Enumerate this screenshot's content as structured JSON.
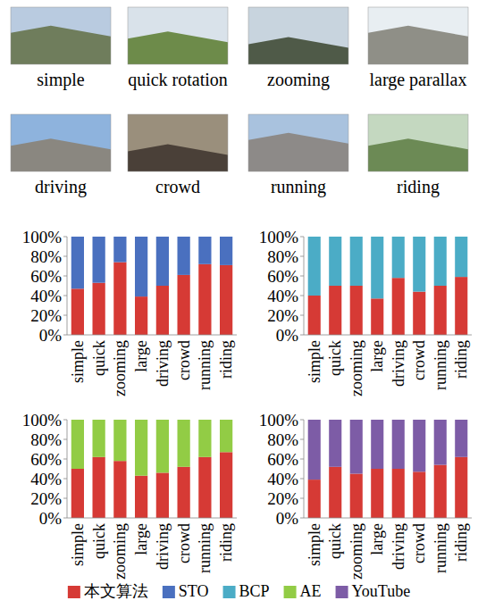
{
  "scenes": [
    "simple",
    "quick rotation",
    "zooming",
    "large parallax",
    "driving",
    "crowd",
    "running",
    "riding"
  ],
  "chart_data": [
    {
      "type": "bar",
      "stacked": true,
      "legend": "bottom",
      "grid": false,
      "categories": [
        "simple",
        "quick",
        "zooming",
        "large",
        "driving",
        "crowd",
        "running",
        "riding"
      ],
      "ylim": [
        0,
        100
      ],
      "yticks": [
        {
          "value": 0,
          "label": "0%"
        },
        {
          "value": 20,
          "label": "20%"
        },
        {
          "value": 40,
          "label": "40%"
        },
        {
          "value": 60,
          "label": "60%"
        },
        {
          "value": 80,
          "label": "80%"
        },
        {
          "value": 100,
          "label": "100%"
        }
      ],
      "series": [
        {
          "name": "本文算法",
          "color": "#d63a35",
          "values": [
            47,
            53,
            74,
            39,
            50,
            61,
            72,
            71
          ]
        },
        {
          "name": "STO",
          "color": "#4a70bf",
          "values": [
            53,
            47,
            26,
            61,
            50,
            39,
            28,
            29
          ]
        }
      ]
    },
    {
      "type": "bar",
      "stacked": true,
      "grid": false,
      "categories": [
        "simple",
        "quick",
        "zooming",
        "large",
        "driving",
        "crowd",
        "running",
        "riding"
      ],
      "ylim": [
        0,
        100
      ],
      "yticks": [
        {
          "value": 0,
          "label": "0%"
        },
        {
          "value": 20,
          "label": "20%"
        },
        {
          "value": 40,
          "label": "40%"
        },
        {
          "value": 60,
          "label": "60%"
        },
        {
          "value": 80,
          "label": "80%"
        },
        {
          "value": 100,
          "label": "100%"
        }
      ],
      "series": [
        {
          "name": "本文算法",
          "color": "#d63a35",
          "values": [
            40,
            50,
            50,
            37,
            58,
            44,
            50,
            59
          ]
        },
        {
          "name": "BCP",
          "color": "#4bacc6",
          "values": [
            60,
            50,
            50,
            63,
            42,
            56,
            50,
            41
          ]
        }
      ]
    },
    {
      "type": "bar",
      "stacked": true,
      "grid": false,
      "categories": [
        "simple",
        "quick",
        "zooming",
        "large",
        "driving",
        "crowd",
        "running",
        "riding"
      ],
      "ylim": [
        0,
        100
      ],
      "yticks": [
        {
          "value": 0,
          "label": "0%"
        },
        {
          "value": 20,
          "label": "20%"
        },
        {
          "value": 40,
          "label": "40%"
        },
        {
          "value": 60,
          "label": "60%"
        },
        {
          "value": 80,
          "label": "80%"
        },
        {
          "value": 100,
          "label": "100%"
        }
      ],
      "series": [
        {
          "name": "本文算法",
          "color": "#d63a35",
          "values": [
            50,
            62,
            58,
            43,
            46,
            52,
            62,
            67
          ]
        },
        {
          "name": "AE",
          "color": "#92cc45",
          "values": [
            50,
            38,
            42,
            57,
            54,
            48,
            38,
            33
          ]
        }
      ]
    },
    {
      "type": "bar",
      "stacked": true,
      "grid": false,
      "categories": [
        "simple",
        "quick",
        "zooming",
        "large",
        "driving",
        "crowd",
        "running",
        "riding"
      ],
      "ylim": [
        0,
        100
      ],
      "yticks": [
        {
          "value": 0,
          "label": "0%"
        },
        {
          "value": 20,
          "label": "20%"
        },
        {
          "value": 40,
          "label": "40%"
        },
        {
          "value": 60,
          "label": "60%"
        },
        {
          "value": 80,
          "label": "80%"
        },
        {
          "value": 100,
          "label": "100%"
        }
      ],
      "series": [
        {
          "name": "本文算法",
          "color": "#d63a35",
          "values": [
            39,
            52,
            45,
            50,
            50,
            47,
            54,
            62
          ]
        },
        {
          "name": "YouTube",
          "color": "#7d5ca6",
          "values": [
            61,
            48,
            55,
            50,
            50,
            53,
            46,
            38
          ]
        }
      ]
    }
  ]
}
